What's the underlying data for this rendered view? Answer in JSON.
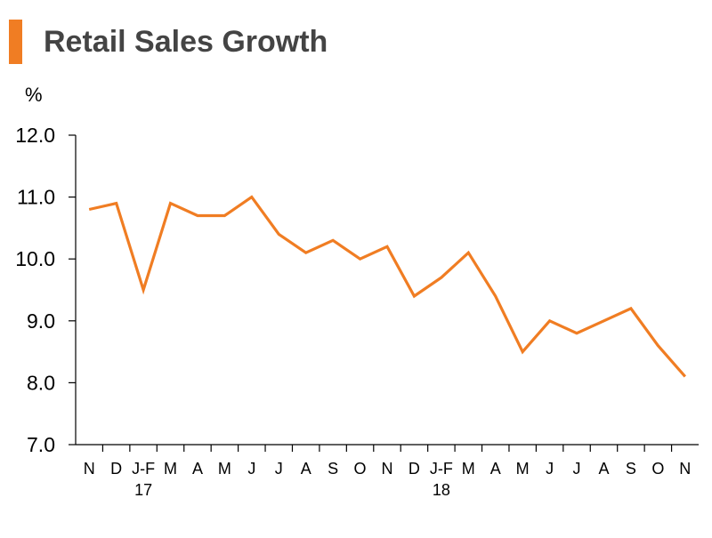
{
  "title": "Retail Sales Growth",
  "colors": {
    "accent_bar": "#f07d23",
    "line": "#f07d23",
    "axis": "#000000",
    "title_text": "#444444"
  },
  "chart_data": {
    "type": "line",
    "title": "Retail Sales Growth",
    "unit_label": "%",
    "xlabel": "",
    "ylabel": "%",
    "ylim": [
      7.0,
      12.0
    ],
    "y_ticks": [
      "7.0",
      "8.0",
      "9.0",
      "10.0",
      "11.0",
      "12.0"
    ],
    "y_tick_values": [
      7.0,
      8.0,
      9.0,
      10.0,
      11.0,
      12.0
    ],
    "categories": [
      "N",
      "D",
      "J-F",
      "M",
      "A",
      "M",
      "J",
      "J",
      "A",
      "S",
      "O",
      "N",
      "D",
      "J-F",
      "M",
      "A",
      "M",
      "J",
      "J",
      "A",
      "S",
      "O",
      "N"
    ],
    "year_labels": [
      {
        "category_index": 2,
        "label": "17"
      },
      {
        "category_index": 13,
        "label": "18"
      }
    ],
    "grid": false,
    "legend": "none",
    "series": [
      {
        "values": [
          10.8,
          10.9,
          9.5,
          10.9,
          10.7,
          10.7,
          11.0,
          10.4,
          10.1,
          10.3,
          10.0,
          10.2,
          9.4,
          9.7,
          10.1,
          9.4,
          8.5,
          9.0,
          8.8,
          9.0,
          9.2,
          8.6,
          8.1
        ]
      }
    ]
  }
}
